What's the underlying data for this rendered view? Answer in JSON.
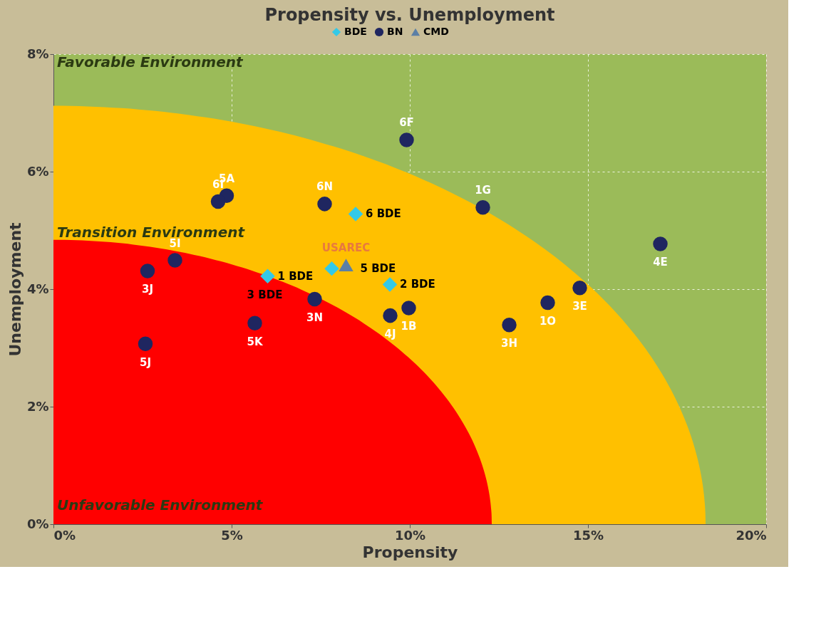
{
  "chart_data": {
    "type": "scatter",
    "title": "Propensity vs. Unemployment",
    "xlabel": "Propensity",
    "ylabel": "Unemployment",
    "xlim": [
      0,
      20
    ],
    "ylim": [
      0,
      8
    ],
    "xticks": [
      {
        "value": 0,
        "label": "0%"
      },
      {
        "value": 5,
        "label": "5%"
      },
      {
        "value": 10,
        "label": "10%"
      },
      {
        "value": 15,
        "label": "15%"
      },
      {
        "value": 20,
        "label": "20%"
      }
    ],
    "yticks": [
      {
        "value": 0,
        "label": "0%"
      },
      {
        "value": 2,
        "label": "2%"
      },
      {
        "value": 4,
        "label": "4%"
      },
      {
        "value": 6,
        "label": "6%"
      },
      {
        "value": 8,
        "label": "8%"
      }
    ],
    "grid": true,
    "legend": "top",
    "series": [
      {
        "name": "BDE",
        "color": "#33c9e8",
        "marker": "diamond",
        "x": [
          8.48,
          6.01,
          7.81,
          9.44
        ],
        "values": [
          5.28,
          4.22,
          4.35,
          4.08
        ]
      },
      {
        "name": "BN",
        "color": "#1f2660",
        "marker": "circle",
        "x": [
          9.91,
          12.05,
          17.03,
          7.61,
          4.86,
          4.62,
          3.41,
          2.64,
          2.58,
          5.65,
          7.33,
          9.45,
          9.97,
          12.79,
          13.87,
          14.77
        ],
        "values": [
          6.54,
          5.39,
          4.77,
          5.45,
          5.59,
          5.49,
          4.49,
          4.31,
          3.07,
          3.42,
          3.83,
          3.55,
          3.68,
          3.39,
          3.77,
          4.02
        ]
      },
      {
        "name": "CMD",
        "color": "#5b7fa6",
        "marker": "triangle",
        "x": [
          8.21
        ],
        "values": [
          4.41
        ]
      }
    ],
    "annotations": [
      "Favorable Environment",
      "Transition Environment",
      "Unfavorable Environment",
      {
        "text": "6 BDE",
        "x": 8.48,
        "y": 5.28
      },
      {
        "text": "1 BDE",
        "x": 6.01,
        "y": 4.22
      },
      {
        "text": "3 BDE",
        "x": 6.01,
        "y": 4.22
      },
      {
        "text": "5 BDE",
        "x": 7.81,
        "y": 4.35
      },
      {
        "text": "2 BDE",
        "x": 9.44,
        "y": 4.08
      },
      {
        "text": "6F",
        "x": 9.91,
        "y": 6.54
      },
      {
        "text": "1G",
        "x": 12.05,
        "y": 5.39
      },
      {
        "text": "4E",
        "x": 17.03,
        "y": 4.77
      },
      {
        "text": "6N",
        "x": 7.61,
        "y": 5.45
      },
      {
        "text": "5A",
        "x": 4.86,
        "y": 5.59
      },
      {
        "text": "6I",
        "x": 4.62,
        "y": 5.49
      },
      {
        "text": "5I",
        "x": 3.41,
        "y": 4.49
      },
      {
        "text": "3J",
        "x": 2.64,
        "y": 4.31
      },
      {
        "text": "5J",
        "x": 2.58,
        "y": 3.07
      },
      {
        "text": "5K",
        "x": 5.65,
        "y": 3.42
      },
      {
        "text": "3N",
        "x": 7.33,
        "y": 3.83
      },
      {
        "text": "4J",
        "x": 9.45,
        "y": 3.55
      },
      {
        "text": "1B",
        "x": 9.97,
        "y": 3.68
      },
      {
        "text": "3H",
        "x": 12.79,
        "y": 3.39
      },
      {
        "text": "1O",
        "x": 13.87,
        "y": 3.77
      },
      {
        "text": "3E",
        "x": 14.77,
        "y": 4.02
      },
      {
        "text": "USAREC",
        "x": 8.21,
        "y": 4.41
      }
    ]
  }
}
